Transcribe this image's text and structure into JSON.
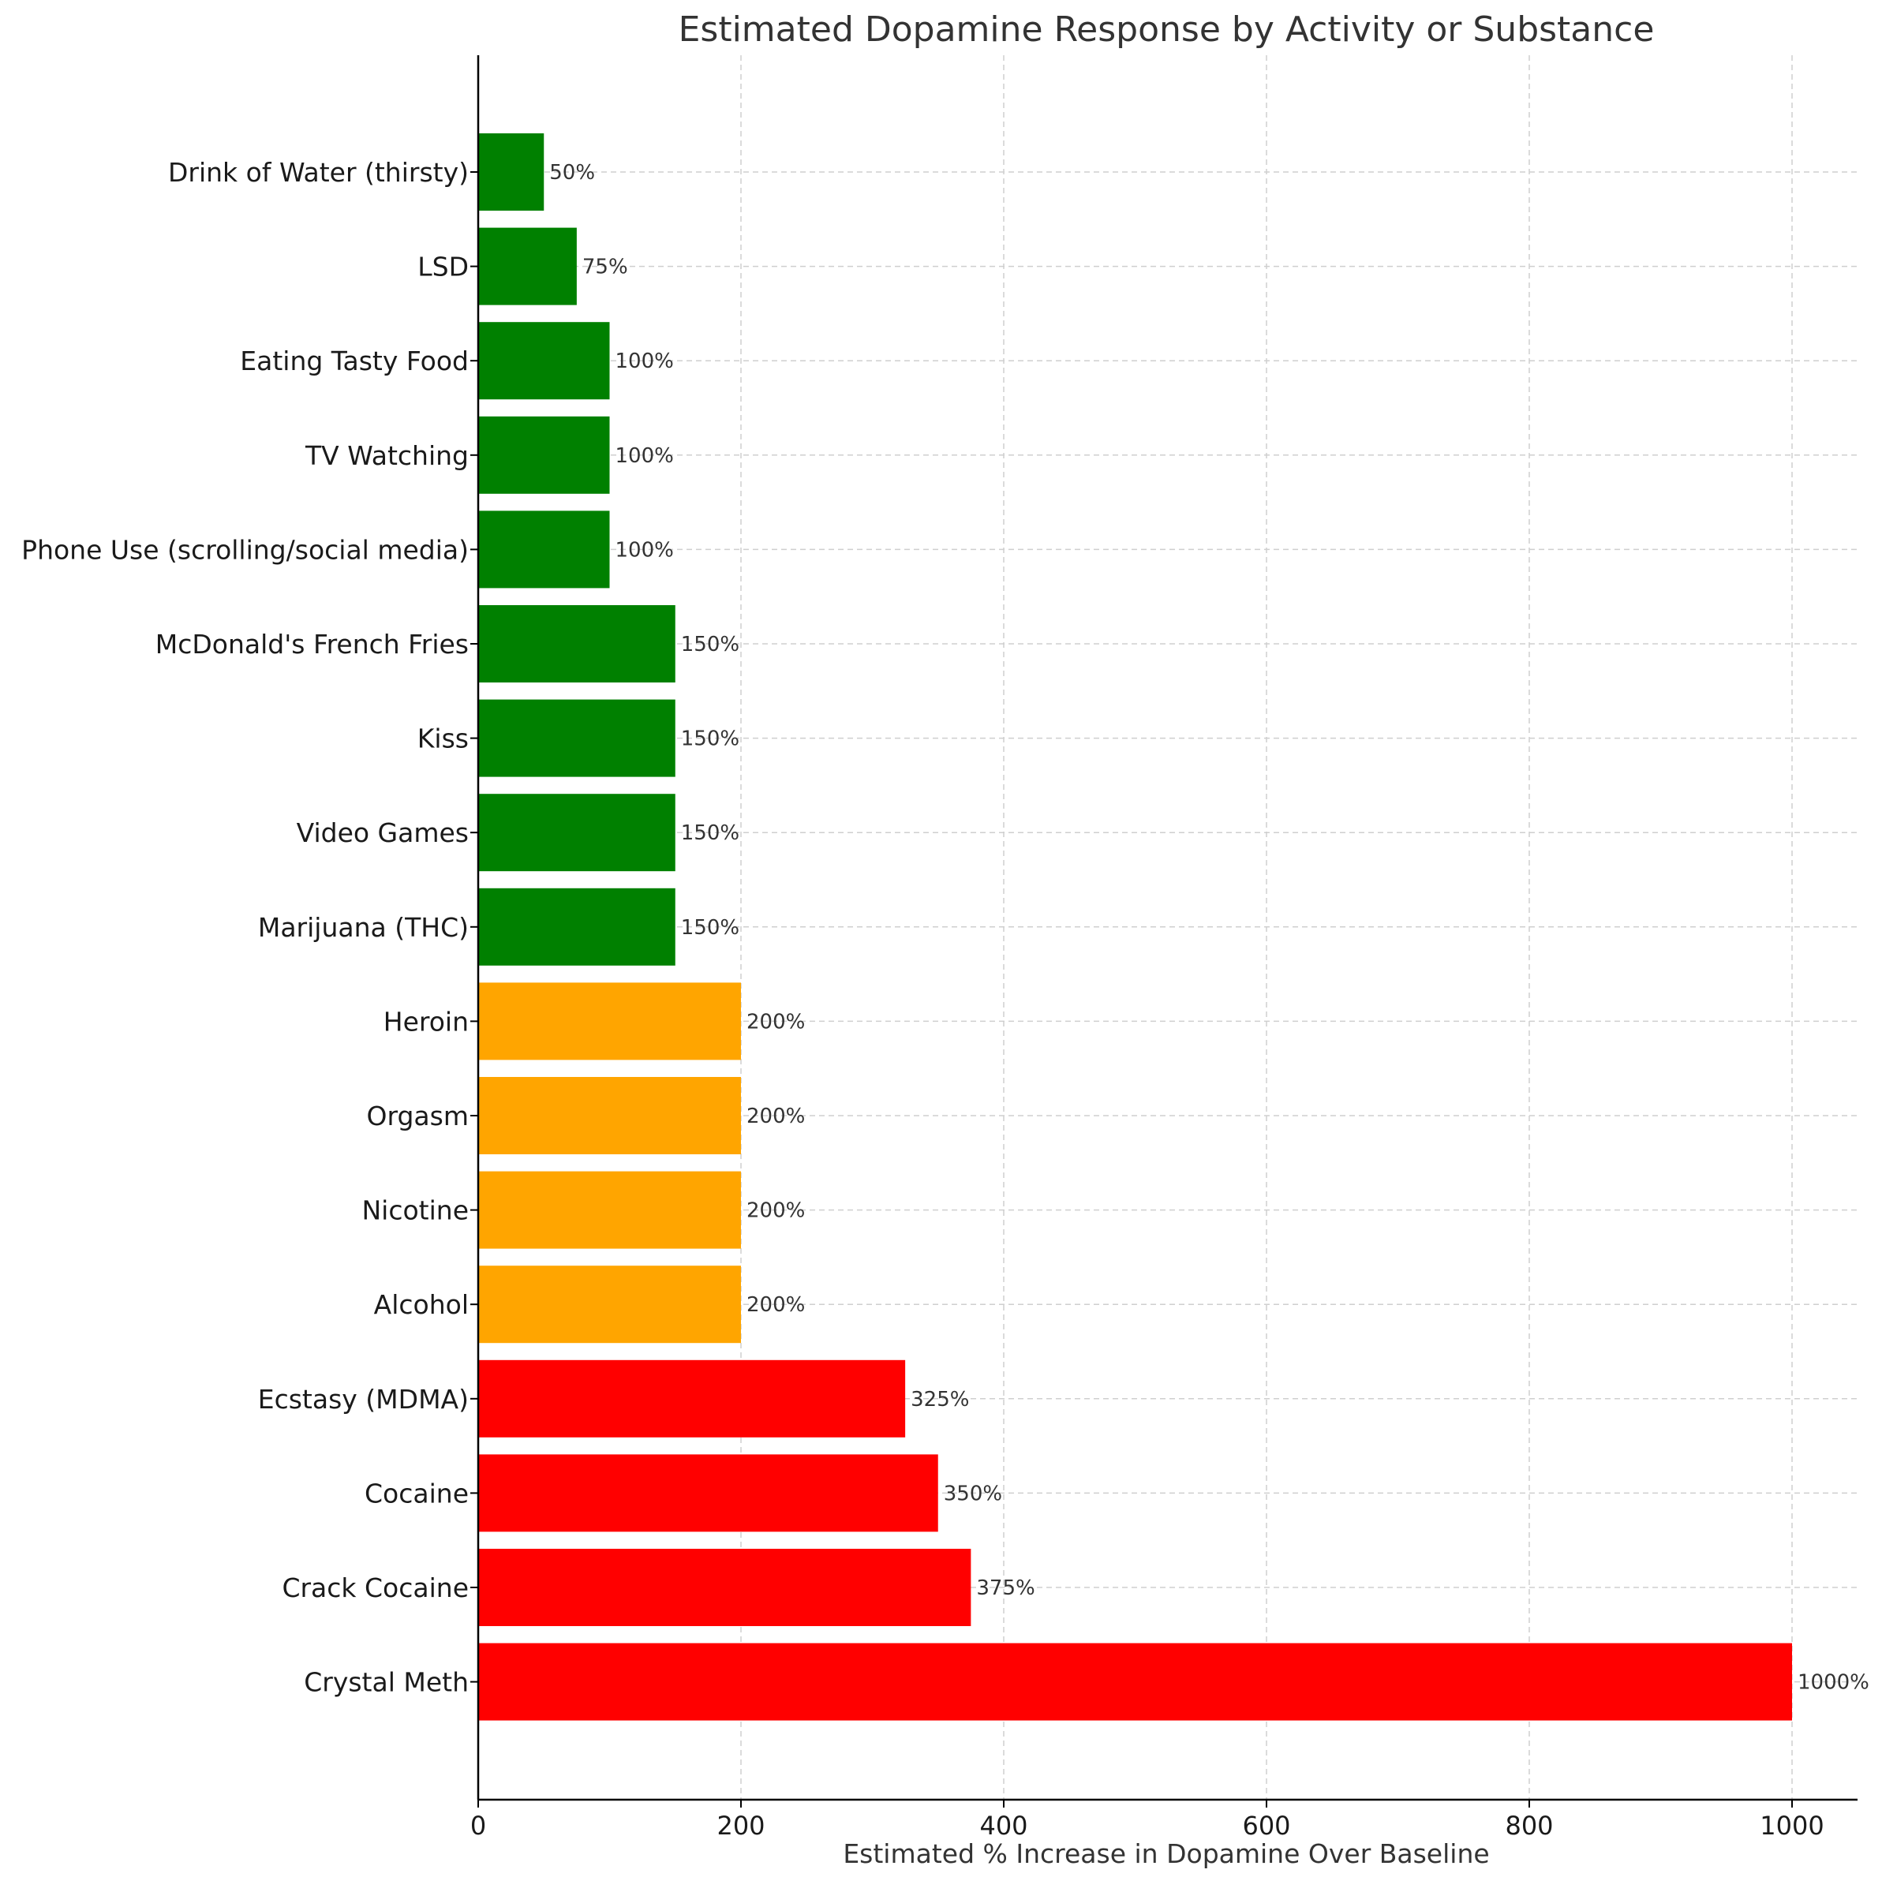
{
  "chart_data": {
    "type": "bar",
    "orientation": "horizontal",
    "title": "Estimated Dopamine Response by Activity or Substance",
    "xlabel": "Estimated % Increase in Dopamine Over Baseline",
    "ylabel": "",
    "xlim": [
      0,
      1050
    ],
    "xticks": [
      0,
      200,
      400,
      600,
      800,
      1000
    ],
    "grid": true,
    "categories": [
      "Drink of Water (thirsty)",
      "LSD",
      "Eating Tasty Food",
      "TV Watching",
      "Phone Use (scrolling/social media)",
      "McDonald's French Fries",
      "Kiss",
      "Video Games",
      "Marijuana (THC)",
      "Heroin",
      "Orgasm",
      "Nicotine",
      "Alcohol",
      "Ecstasy (MDMA)",
      "Cocaine",
      "Crack Cocaine",
      "Crystal Meth"
    ],
    "values": [
      50,
      75,
      100,
      100,
      100,
      150,
      150,
      150,
      150,
      200,
      200,
      200,
      200,
      325,
      350,
      375,
      1000
    ],
    "value_labels": [
      "50%",
      "75%",
      "100%",
      "100%",
      "100%",
      "150%",
      "150%",
      "150%",
      "150%",
      "200%",
      "200%",
      "200%",
      "200%",
      "325%",
      "350%",
      "375%",
      "1000%"
    ],
    "bar_colors": [
      "#008000",
      "#008000",
      "#008000",
      "#008000",
      "#008000",
      "#008000",
      "#008000",
      "#008000",
      "#008000",
      "#FFA500",
      "#FFA500",
      "#FFA500",
      "#FFA500",
      "#FF0000",
      "#FF0000",
      "#FF0000",
      "#FF0000"
    ]
  }
}
